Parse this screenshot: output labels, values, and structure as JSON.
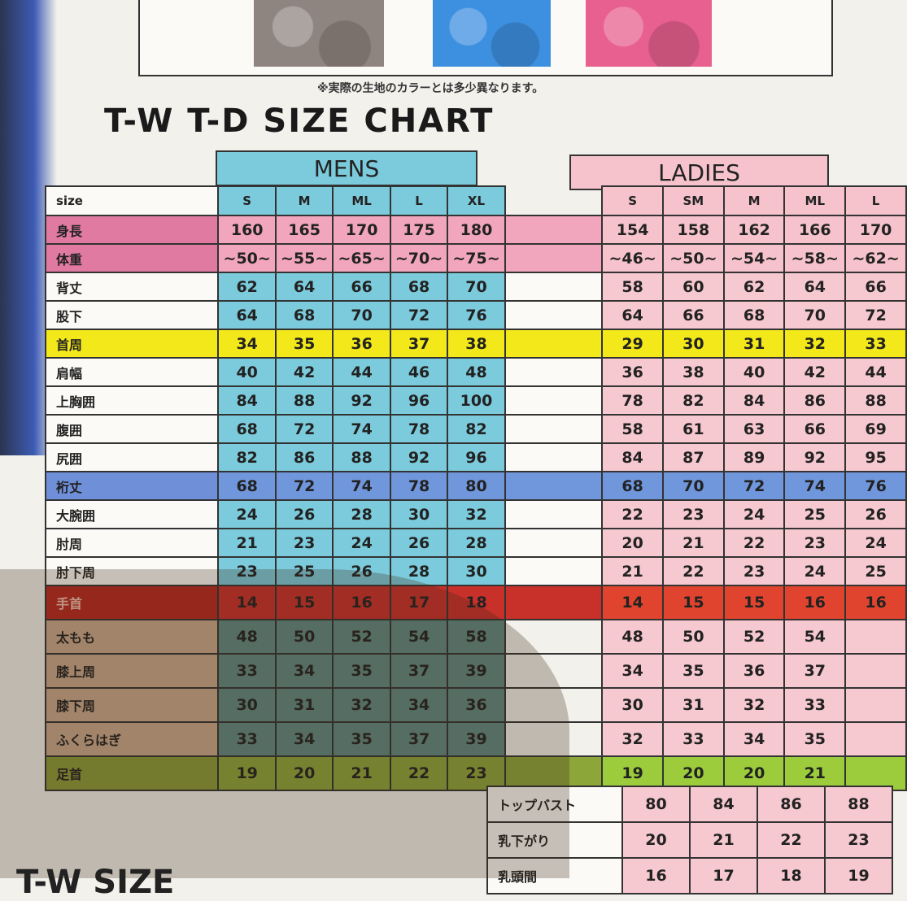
{
  "note": "※実際の生地のカラーとは多少異なります。",
  "title": "T-W T-D SIZE CHART",
  "mens_label": "MENS",
  "ladies_label": "LADIES",
  "size_label": "size",
  "mens_sizes": [
    "S",
    "M",
    "ML",
    "L",
    "XL"
  ],
  "ladies_sizes": [
    "S",
    "SM",
    "M",
    "ML",
    "L"
  ],
  "swatch_colors": [
    "#8f8580",
    "#3d8fe0",
    "#e8608f"
  ],
  "rows": [
    {
      "label": "身長",
      "mens": [
        "160",
        "165",
        "170",
        "175",
        "180"
      ],
      "ladies": [
        "154",
        "158",
        "162",
        "166",
        "170"
      ],
      "style": "pink"
    },
    {
      "label": "体重",
      "mens": [
        "~50~",
        "~55~",
        "~65~",
        "~70~",
        "~75~"
      ],
      "ladies": [
        "~46~",
        "~50~",
        "~54~",
        "~58~",
        "~62~"
      ],
      "style": "pink"
    },
    {
      "label": "背丈",
      "mens": [
        "62",
        "64",
        "66",
        "68",
        "70"
      ],
      "ladies": [
        "58",
        "60",
        "62",
        "64",
        "66"
      ],
      "style": "normal"
    },
    {
      "label": "股下",
      "mens": [
        "64",
        "68",
        "70",
        "72",
        "76"
      ],
      "ladies": [
        "64",
        "66",
        "68",
        "70",
        "72"
      ],
      "style": "normal"
    },
    {
      "label": "首周",
      "mens": [
        "34",
        "35",
        "36",
        "37",
        "38"
      ],
      "ladies": [
        "29",
        "30",
        "31",
        "32",
        "33"
      ],
      "style": "yellow"
    },
    {
      "label": "肩幅",
      "mens": [
        "40",
        "42",
        "44",
        "46",
        "48"
      ],
      "ladies": [
        "36",
        "38",
        "40",
        "42",
        "44"
      ],
      "style": "normal"
    },
    {
      "label": "上胸囲",
      "mens": [
        "84",
        "88",
        "92",
        "96",
        "100"
      ],
      "ladies": [
        "78",
        "82",
        "84",
        "86",
        "88"
      ],
      "style": "normal"
    },
    {
      "label": "腹囲",
      "mens": [
        "68",
        "72",
        "74",
        "78",
        "82"
      ],
      "ladies": [
        "58",
        "61",
        "63",
        "66",
        "69"
      ],
      "style": "normal"
    },
    {
      "label": "尻囲",
      "mens": [
        "82",
        "86",
        "88",
        "92",
        "96"
      ],
      "ladies": [
        "84",
        "87",
        "89",
        "92",
        "95"
      ],
      "style": "normal"
    },
    {
      "label": "裄丈",
      "mens": [
        "68",
        "72",
        "74",
        "78",
        "80"
      ],
      "ladies": [
        "68",
        "70",
        "72",
        "74",
        "76"
      ],
      "style": "blue"
    },
    {
      "label": "大腕囲",
      "mens": [
        "24",
        "26",
        "28",
        "30",
        "32"
      ],
      "ladies": [
        "22",
        "23",
        "24",
        "25",
        "26"
      ],
      "style": "normal"
    },
    {
      "label": "肘周",
      "mens": [
        "21",
        "23",
        "24",
        "26",
        "28"
      ],
      "ladies": [
        "20",
        "21",
        "22",
        "23",
        "24"
      ],
      "style": "normal"
    },
    {
      "label": "肘下周",
      "mens": [
        "23",
        "25",
        "26",
        "28",
        "30"
      ],
      "ladies": [
        "21",
        "22",
        "23",
        "24",
        "25"
      ],
      "style": "normal"
    },
    {
      "label": "手首",
      "mens": [
        "14",
        "15",
        "16",
        "17",
        "18"
      ],
      "ladies": [
        "14",
        "15",
        "15",
        "16",
        "16"
      ],
      "style": "red"
    },
    {
      "label": "太もも",
      "mens": [
        "48",
        "50",
        "52",
        "54",
        "58"
      ],
      "ladies": [
        "48",
        "50",
        "52",
        "54",
        ""
      ],
      "style": "leg"
    },
    {
      "label": "膝上周",
      "mens": [
        "33",
        "34",
        "35",
        "37",
        "39"
      ],
      "ladies": [
        "34",
        "35",
        "36",
        "37",
        ""
      ],
      "style": "leg"
    },
    {
      "label": "膝下周",
      "mens": [
        "30",
        "31",
        "32",
        "34",
        "36"
      ],
      "ladies": [
        "30",
        "31",
        "32",
        "33",
        ""
      ],
      "style": "leg"
    },
    {
      "label": "ふくらはぎ",
      "mens": [
        "33",
        "34",
        "35",
        "37",
        "39"
      ],
      "ladies": [
        "32",
        "33",
        "34",
        "35",
        ""
      ],
      "style": "leg"
    },
    {
      "label": "足首",
      "mens": [
        "19",
        "20",
        "21",
        "22",
        "23"
      ],
      "ladies": [
        "19",
        "20",
        "20",
        "21",
        ""
      ],
      "style": "green"
    }
  ],
  "ladies_extra": [
    {
      "label": "トップバスト",
      "values": [
        "80",
        "84",
        "86",
        "88"
      ]
    },
    {
      "label": "乳下がり",
      "values": [
        "20",
        "21",
        "22",
        "23"
      ]
    },
    {
      "label": "乳頭間",
      "values": [
        "16",
        "17",
        "18",
        "19"
      ]
    }
  ],
  "bottom_title": "T-W SIZE"
}
